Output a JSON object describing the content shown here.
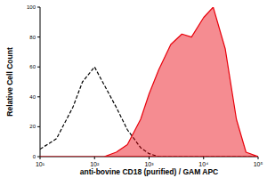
{
  "chart_data": {
    "type": "area",
    "xlabel": "anti-bovine CD18 (purified) / GAM APC",
    "ylabel": "Relative Cell Count",
    "log": "x",
    "x": [
      10,
      20,
      40,
      60,
      100,
      150,
      250,
      400,
      700,
      1000,
      1500,
      2500,
      4000,
      6000,
      10000,
      15000,
      25000,
      40000,
      60000,
      100000
    ],
    "series": [
      {
        "type": "line",
        "color": "#000000",
        "line_style": "dashed",
        "values": [
          5,
          12,
          33,
          50,
          60,
          48,
          33,
          18,
          6,
          2,
          0,
          0,
          0,
          0,
          0,
          0,
          0,
          0,
          0,
          0
        ]
      },
      {
        "type": "area",
        "color": "#e8000b",
        "values": [
          0,
          0,
          0,
          0,
          0,
          0,
          3,
          8,
          25,
          42,
          58,
          75,
          82,
          80,
          93,
          100,
          72,
          25,
          3,
          0
        ]
      }
    ],
    "xlim": [
      10,
      100000
    ],
    "xticks": [
      {
        "value": 10,
        "label": "10¹"
      },
      {
        "value": 100,
        "label": "10²"
      },
      {
        "value": 1000,
        "label": "10³"
      },
      {
        "value": 10000,
        "label": "10⁴"
      },
      {
        "value": 100000,
        "label": "10⁵"
      }
    ],
    "ylim": [
      0,
      100
    ],
    "yticks": [
      0,
      20,
      40,
      60,
      80,
      100
    ],
    "grid": false
  }
}
